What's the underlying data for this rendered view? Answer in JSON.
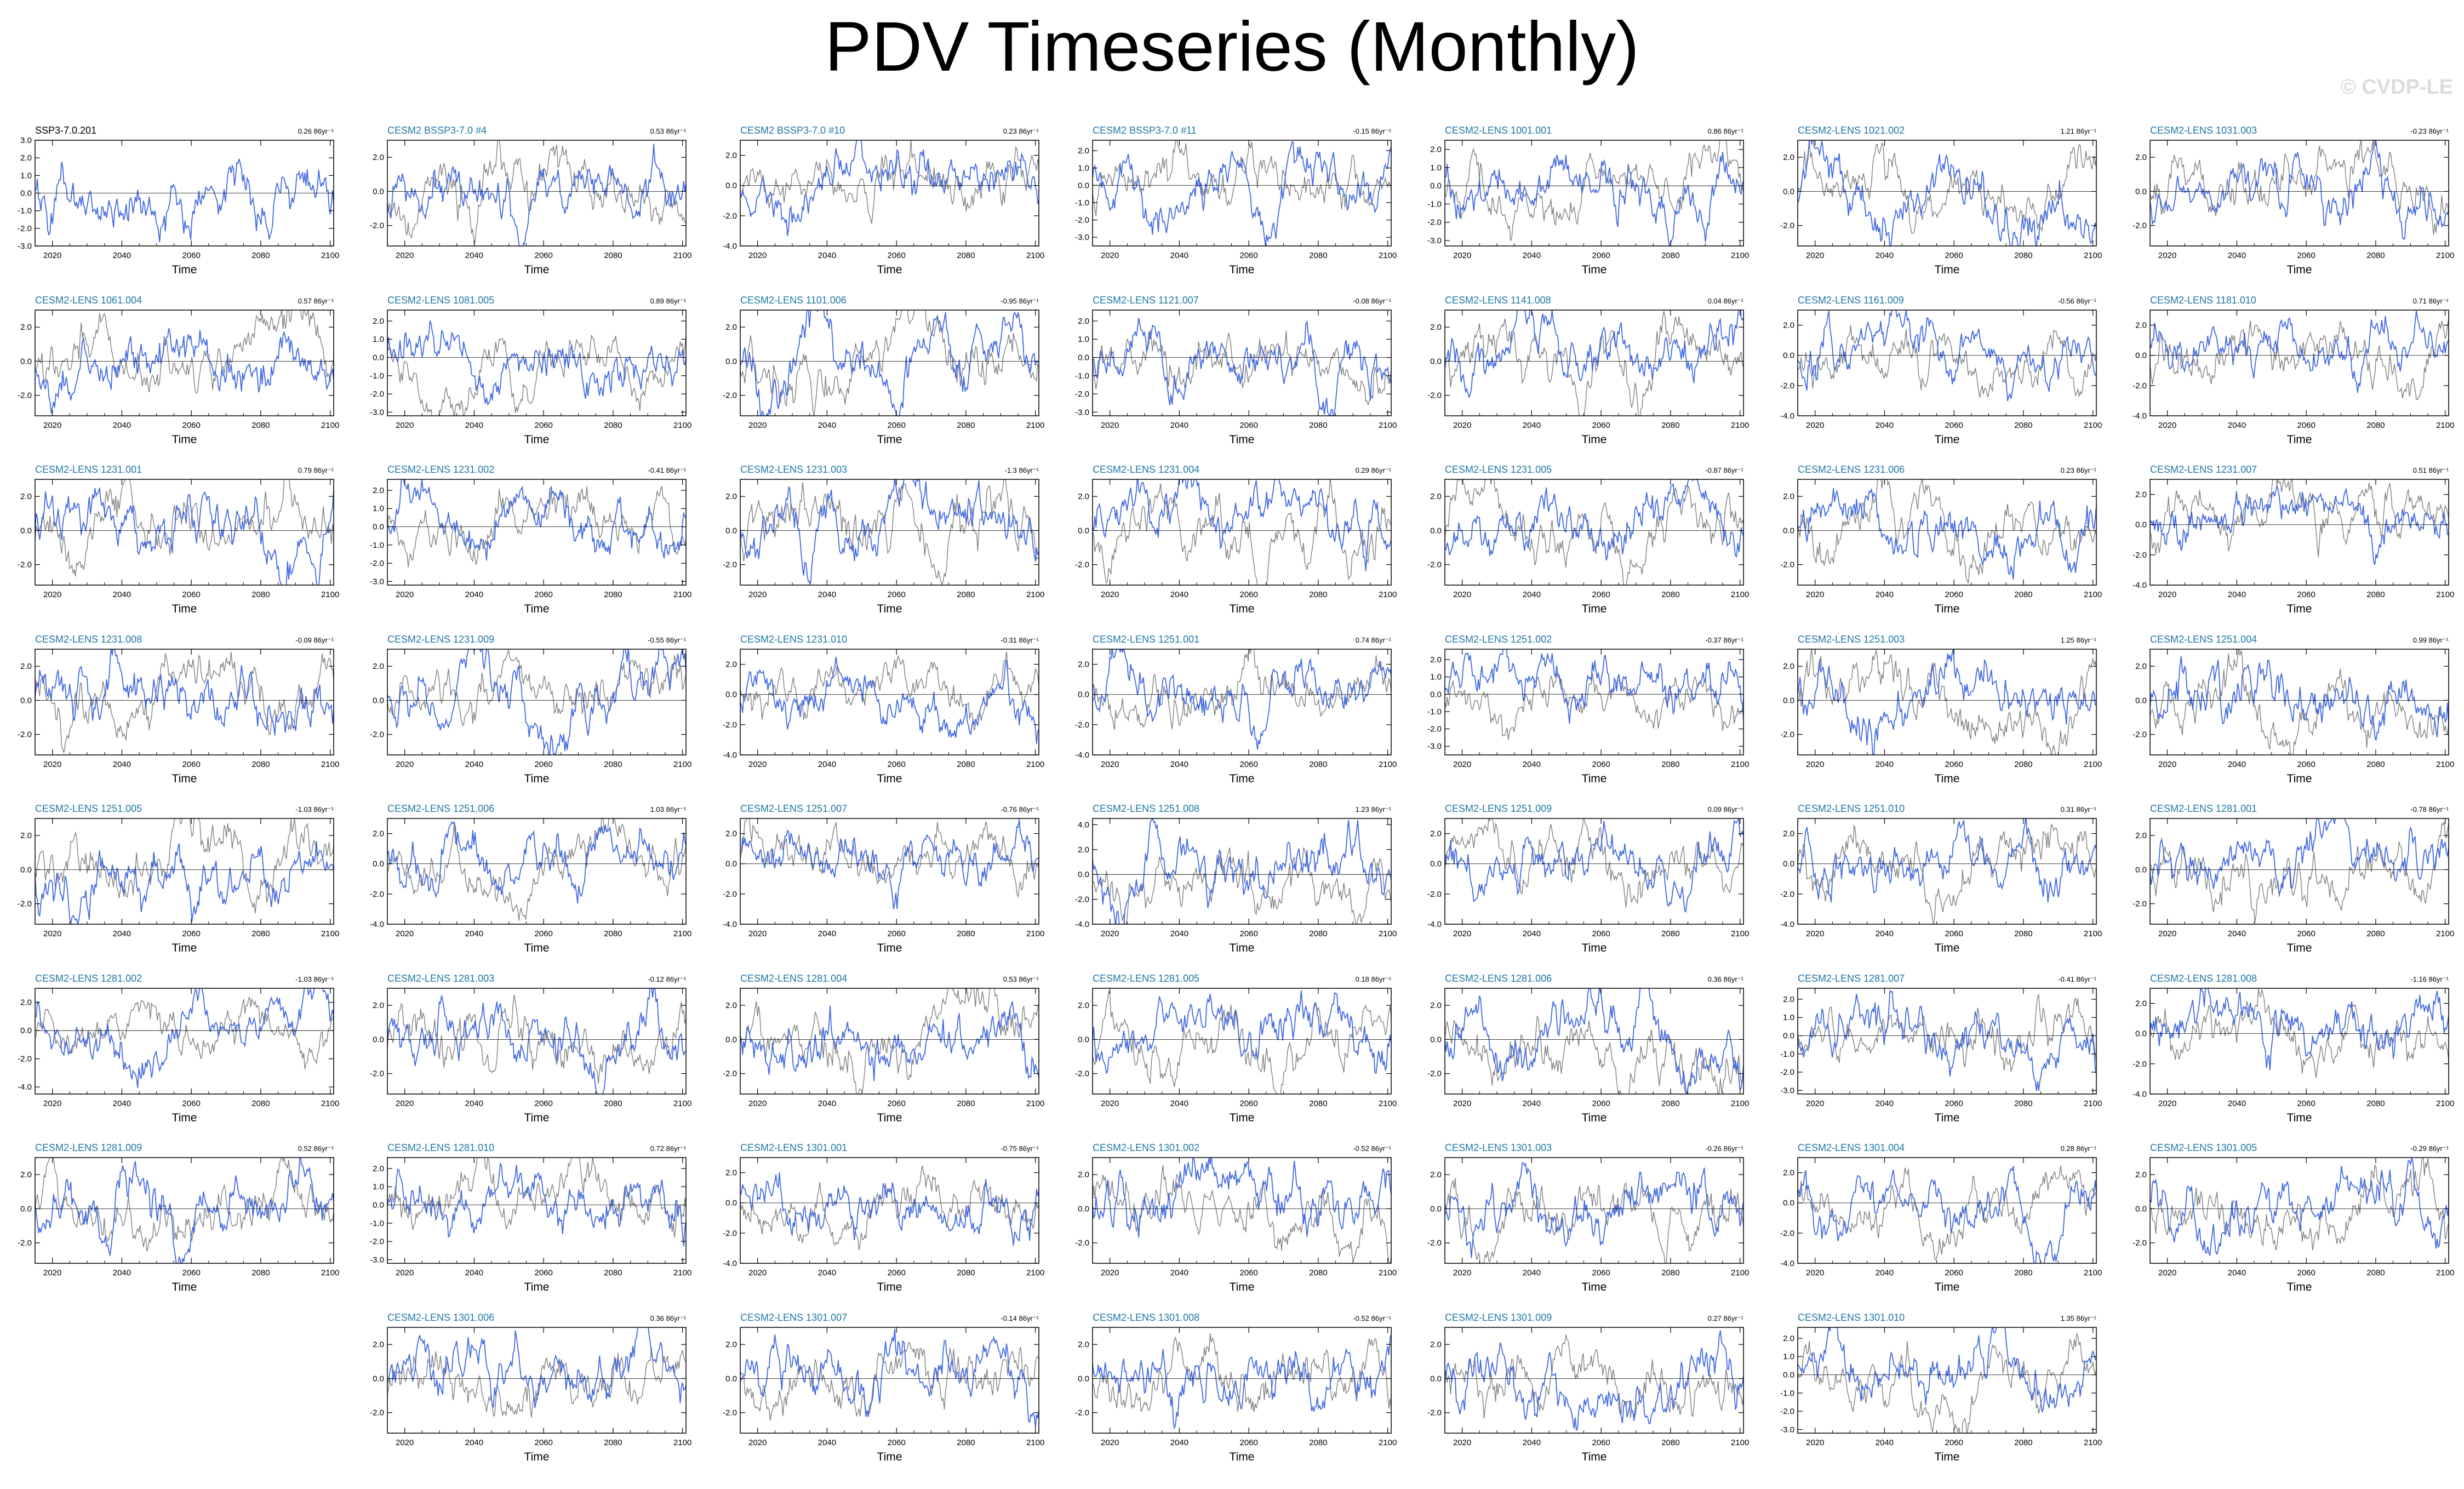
{
  "title": "PDV Timeseries (Monthly)",
  "watermark": "© CVDP-LE",
  "colors": {
    "observations": "#000000",
    "title_member": "#1f77a5",
    "simulation": "#4169e1",
    "reference": "#808080",
    "zero_line": "#000000"
  },
  "chart_data": {
    "type": "line",
    "xlabel": "Time",
    "x_ticks": [
      "2020",
      "2040",
      "2060",
      "2080",
      "2100"
    ],
    "xlim": [
      2015,
      2101
    ],
    "panels": [
      {
        "title": "SSP3-7.0.201",
        "trend": "0.26 86yr⁻¹",
        "yticks": [
          "3.0",
          "2.0",
          "1.0",
          "0.0",
          "-1.0",
          "-2.0",
          "-3.0"
        ],
        "ylim": [
          -3.0,
          3.0
        ],
        "gray": false
      },
      {
        "title": "CESM2 BSSP3-7.0 #4",
        "trend": "0.53 86yr⁻¹",
        "yticks": [
          "2.0",
          "0.0",
          "-2.0"
        ],
        "ylim": [
          -3.2,
          3.0
        ],
        "gray": true
      },
      {
        "title": "CESM2 BSSP3-7.0 #10",
        "trend": "0.23 86yr⁻¹",
        "yticks": [
          "2.0",
          "0.0",
          "-2.0",
          "-4.0"
        ],
        "ylim": [
          -4.0,
          3.0
        ],
        "gray": true
      },
      {
        "title": "CESM2 BSSP3-7.0 #11",
        "trend": "-0.15 86yr⁻¹",
        "yticks": [
          "2.0",
          "1.0",
          "0.0",
          "-1.0",
          "-2.0",
          "-3.0"
        ],
        "ylim": [
          -3.5,
          2.6
        ],
        "gray": true
      },
      {
        "title": "CESM2-LENS 1001.001",
        "trend": "0.86 86yr⁻¹",
        "yticks": [
          "2.0",
          "1.0",
          "0.0",
          "-1.0",
          "-2.0",
          "-3.0"
        ],
        "ylim": [
          -3.3,
          2.5
        ],
        "gray": true
      },
      {
        "title": "CESM2-LENS 1021.002",
        "trend": "1.21 86yr⁻¹",
        "yticks": [
          "2.0",
          "0.0",
          "-2.0"
        ],
        "ylim": [
          -3.2,
          3.0
        ],
        "gray": true
      },
      {
        "title": "CESM2-LENS 1031.003",
        "trend": "-0.23 86yr⁻¹",
        "yticks": [
          "2.0",
          "0.0",
          "-2.0"
        ],
        "ylim": [
          -3.2,
          3.0
        ],
        "gray": true
      },
      {
        "title": "CESM2-LENS 1061.004",
        "trend": "0.57 86yr⁻¹",
        "yticks": [
          "2.0",
          "0.0",
          "-2.0"
        ],
        "ylim": [
          -3.2,
          3.0
        ],
        "gray": true
      },
      {
        "title": "CESM2-LENS 1081.005",
        "trend": "0.89 86yr⁻¹",
        "yticks": [
          "2.0",
          "1.0",
          "0.0",
          "-1.0",
          "-2.0",
          "-3.0"
        ],
        "ylim": [
          -3.2,
          2.6
        ],
        "gray": true
      },
      {
        "title": "CESM2-LENS 1101.006",
        "trend": "-0.95 86yr⁻¹",
        "yticks": [
          "2.0",
          "0.0",
          "-2.0"
        ],
        "ylim": [
          -3.2,
          3.0
        ],
        "gray": true
      },
      {
        "title": "CESM2-LENS 1121.007",
        "trend": "-0.08 86yr⁻¹",
        "yticks": [
          "2.0",
          "1.0",
          "0.0",
          "-1.0",
          "-2.0",
          "-3.0"
        ],
        "ylim": [
          -3.2,
          2.6
        ],
        "gray": true
      },
      {
        "title": "CESM2-LENS 1141.008",
        "trend": "0.04 86yr⁻¹",
        "yticks": [
          "2.0",
          "0.0",
          "-2.0"
        ],
        "ylim": [
          -3.2,
          3.0
        ],
        "gray": true
      },
      {
        "title": "CESM2-LENS 1161.009",
        "trend": "-0.56 86yr⁻¹",
        "yticks": [
          "2.0",
          "0.0",
          "-2.0",
          "-4.0"
        ],
        "ylim": [
          -4.0,
          3.0
        ],
        "gray": true
      },
      {
        "title": "CESM2-LENS 1181.010",
        "trend": "0.71 86yr⁻¹",
        "yticks": [
          "2.0",
          "0.0",
          "-2.0",
          "-4.0"
        ],
        "ylim": [
          -4.0,
          3.0
        ],
        "gray": true
      },
      {
        "title": "CESM2-LENS 1231.001",
        "trend": "0.79 86yr⁻¹",
        "yticks": [
          "2.0",
          "0.0",
          "-2.0"
        ],
        "ylim": [
          -3.2,
          3.0
        ],
        "gray": true
      },
      {
        "title": "CESM2-LENS 1231.002",
        "trend": "-0.41 86yr⁻¹",
        "yticks": [
          "2.0",
          "1.0",
          "0.0",
          "-1.0",
          "-2.0",
          "-3.0"
        ],
        "ylim": [
          -3.2,
          2.6
        ],
        "gray": true
      },
      {
        "title": "CESM2-LENS 1231.003",
        "trend": "-1.3 86yr⁻¹",
        "yticks": [
          "2.0",
          "0.0",
          "-2.0"
        ],
        "ylim": [
          -3.2,
          3.0
        ],
        "gray": true
      },
      {
        "title": "CESM2-LENS 1231.004",
        "trend": "0.29 86yr⁻¹",
        "yticks": [
          "2.0",
          "0.0",
          "-2.0"
        ],
        "ylim": [
          -3.2,
          3.0
        ],
        "gray": true
      },
      {
        "title": "CESM2-LENS 1231.005",
        "trend": "-0.87 86yr⁻¹",
        "yticks": [
          "2.0",
          "0.0",
          "-2.0"
        ],
        "ylim": [
          -3.2,
          3.0
        ],
        "gray": true
      },
      {
        "title": "CESM2-LENS 1231.006",
        "trend": "0.23 86yr⁻¹",
        "yticks": [
          "2.0",
          "0.0",
          "-2.0"
        ],
        "ylim": [
          -3.2,
          3.0
        ],
        "gray": true
      },
      {
        "title": "CESM2-LENS 1231.007",
        "trend": "0.51 86yr⁻¹",
        "yticks": [
          "2.0",
          "0.0",
          "-2.0",
          "-4.0"
        ],
        "ylim": [
          -4.0,
          3.0
        ],
        "gray": true
      },
      {
        "title": "CESM2-LENS 1231.008",
        "trend": "-0.09 86yr⁻¹",
        "yticks": [
          "2.0",
          "0.0",
          "-2.0"
        ],
        "ylim": [
          -3.2,
          3.0
        ],
        "gray": true
      },
      {
        "title": "CESM2-LENS 1231.009",
        "trend": "-0.55 86yr⁻¹",
        "yticks": [
          "2.0",
          "0.0",
          "-2.0"
        ],
        "ylim": [
          -3.2,
          3.0
        ],
        "gray": true
      },
      {
        "title": "CESM2-LENS 1231.010",
        "trend": "-0.31 86yr⁻¹",
        "yticks": [
          "2.0",
          "0.0",
          "-2.0",
          "-4.0"
        ],
        "ylim": [
          -4.0,
          3.0
        ],
        "gray": true
      },
      {
        "title": "CESM2-LENS 1251.001",
        "trend": "0.74 86yr⁻¹",
        "yticks": [
          "2.0",
          "0.0",
          "-2.0",
          "-4.0"
        ],
        "ylim": [
          -4.0,
          3.0
        ],
        "gray": true
      },
      {
        "title": "CESM2-LENS 1251.002",
        "trend": "-0.37 86yr⁻¹",
        "yticks": [
          "2.0",
          "1.0",
          "0.0",
          "-1.0",
          "-2.0",
          "-3.0"
        ],
        "ylim": [
          -3.5,
          2.6
        ],
        "gray": true
      },
      {
        "title": "CESM2-LENS 1251.003",
        "trend": "1.25 86yr⁻¹",
        "yticks": [
          "2.0",
          "0.0",
          "-2.0"
        ],
        "ylim": [
          -3.2,
          3.0
        ],
        "gray": true
      },
      {
        "title": "CESM2-LENS 1251.004",
        "trend": "0.99 86yr⁻¹",
        "yticks": [
          "2.0",
          "0.0",
          "-2.0"
        ],
        "ylim": [
          -3.2,
          3.0
        ],
        "gray": true
      },
      {
        "title": "CESM2-LENS 1251.005",
        "trend": "-1.03 86yr⁻¹",
        "yticks": [
          "2.0",
          "0.0",
          "-2.0"
        ],
        "ylim": [
          -3.2,
          3.0
        ],
        "gray": true
      },
      {
        "title": "CESM2-LENS 1251.006",
        "trend": "1.03 86yr⁻¹",
        "yticks": [
          "2.0",
          "0.0",
          "-2.0",
          "-4.0"
        ],
        "ylim": [
          -4.0,
          3.0
        ],
        "gray": true
      },
      {
        "title": "CESM2-LENS 1251.007",
        "trend": "-0.76 86yr⁻¹",
        "yticks": [
          "2.0",
          "0.0",
          "-2.0",
          "-4.0"
        ],
        "ylim": [
          -4.0,
          3.0
        ],
        "gray": true
      },
      {
        "title": "CESM2-LENS 1251.008",
        "trend": "1.23 86yr⁻¹",
        "yticks": [
          "4.0",
          "2.0",
          "0.0",
          "-2.0",
          "-4.0"
        ],
        "ylim": [
          -4.0,
          4.5
        ],
        "gray": true
      },
      {
        "title": "CESM2-LENS 1251.009",
        "trend": "0.09 86yr⁻¹",
        "yticks": [
          "2.0",
          "0.0",
          "-2.0",
          "-4.0"
        ],
        "ylim": [
          -4.0,
          3.0
        ],
        "gray": true
      },
      {
        "title": "CESM2-LENS 1251.010",
        "trend": "0.31 86yr⁻¹",
        "yticks": [
          "2.0",
          "0.0",
          "-2.0",
          "-4.0"
        ],
        "ylim": [
          -4.0,
          3.0
        ],
        "gray": true
      },
      {
        "title": "CESM2-LENS 1281.001",
        "trend": "-0.78 86yr⁻¹",
        "yticks": [
          "2.0",
          "0.0",
          "-2.0"
        ],
        "ylim": [
          -3.2,
          3.0
        ],
        "gray": true
      },
      {
        "title": "CESM2-LENS 1281.002",
        "trend": "-1.03 86yr⁻¹",
        "yticks": [
          "2.0",
          "0.0",
          "-2.0",
          "-4.0"
        ],
        "ylim": [
          -4.5,
          3.0
        ],
        "gray": true
      },
      {
        "title": "CESM2-LENS 1281.003",
        "trend": "-0.12 86yr⁻¹",
        "yticks": [
          "2.0",
          "0.0",
          "-2.0"
        ],
        "ylim": [
          -3.2,
          3.0
        ],
        "gray": true
      },
      {
        "title": "CESM2-LENS 1281.004",
        "trend": "0.53 86yr⁻¹",
        "yticks": [
          "2.0",
          "0.0",
          "-2.0"
        ],
        "ylim": [
          -3.2,
          3.0
        ],
        "gray": true
      },
      {
        "title": "CESM2-LENS 1281.005",
        "trend": "0.18 86yr⁻¹",
        "yticks": [
          "2.0",
          "0.0",
          "-2.0"
        ],
        "ylim": [
          -3.2,
          3.0
        ],
        "gray": true
      },
      {
        "title": "CESM2-LENS 1281.006",
        "trend": "0.36 86yr⁻¹",
        "yticks": [
          "2.0",
          "0.0",
          "-2.0"
        ],
        "ylim": [
          -3.2,
          3.0
        ],
        "gray": true
      },
      {
        "title": "CESM2-LENS 1281.007",
        "trend": "-0.41 86yr⁻¹",
        "yticks": [
          "2.0",
          "1.0",
          "0.0",
          "-1.0",
          "-2.0",
          "-3.0"
        ],
        "ylim": [
          -3.2,
          2.6
        ],
        "gray": true
      },
      {
        "title": "CESM2-LENS 1281.008",
        "trend": "-1.16 86yr⁻¹",
        "yticks": [
          "2.0",
          "0.0",
          "-2.0",
          "-4.0"
        ],
        "ylim": [
          -4.0,
          3.0
        ],
        "gray": true
      },
      {
        "title": "CESM2-LENS 1281.009",
        "trend": "0.52 86yr⁻¹",
        "yticks": [
          "2.0",
          "0.0",
          "-2.0"
        ],
        "ylim": [
          -3.2,
          3.0
        ],
        "gray": true
      },
      {
        "title": "CESM2-LENS 1281.010",
        "trend": "0.72 86yr⁻¹",
        "yticks": [
          "2.0",
          "1.0",
          "0.0",
          "-1.0",
          "-2.0",
          "-3.0"
        ],
        "ylim": [
          -3.2,
          2.6
        ],
        "gray": true
      },
      {
        "title": "CESM2-LENS 1301.001",
        "trend": "-0.75 86yr⁻¹",
        "yticks": [
          "2.0",
          "0.0",
          "-2.0",
          "-4.0"
        ],
        "ylim": [
          -4.0,
          3.0
        ],
        "gray": true
      },
      {
        "title": "CESM2-LENS 1301.002",
        "trend": "-0.52 86yr⁻¹",
        "yticks": [
          "2.0",
          "0.0",
          "-2.0"
        ],
        "ylim": [
          -3.2,
          3.0
        ],
        "gray": true
      },
      {
        "title": "CESM2-LENS 1301.003",
        "trend": "-0.26 86yr⁻¹",
        "yticks": [
          "2.0",
          "0.0",
          "-2.0"
        ],
        "ylim": [
          -3.2,
          3.0
        ],
        "gray": true
      },
      {
        "title": "CESM2-LENS 1301.004",
        "trend": "0.28 86yr⁻¹",
        "yticks": [
          "2.0",
          "0.0",
          "-2.0",
          "-4.0"
        ],
        "ylim": [
          -4.0,
          3.0
        ],
        "gray": true
      },
      {
        "title": "CESM2-LENS 1301.005",
        "trend": "-0.29 86yr⁻¹",
        "yticks": [
          "2.0",
          "0.0",
          "-2.0"
        ],
        "ylim": [
          -3.2,
          3.0
        ],
        "gray": true
      },
      {
        "title": "CESM2-LENS 1301.006",
        "trend": "0.36 86yr⁻¹",
        "yticks": [
          "2.0",
          "0.0",
          "-2.0"
        ],
        "ylim": [
          -3.2,
          3.0
        ],
        "gray": true
      },
      {
        "title": "CESM2-LENS 1301.007",
        "trend": "-0.14 86yr⁻¹",
        "yticks": [
          "2.0",
          "0.0",
          "-2.0"
        ],
        "ylim": [
          -3.2,
          3.0
        ],
        "gray": true
      },
      {
        "title": "CESM2-LENS 1301.008",
        "trend": "-0.52 86yr⁻¹",
        "yticks": [
          "2.0",
          "0.0",
          "-2.0"
        ],
        "ylim": [
          -3.2,
          3.0
        ],
        "gray": true
      },
      {
        "title": "CESM2-LENS 1301.009",
        "trend": "0.27 86yr⁻¹",
        "yticks": [
          "2.0",
          "0.0",
          "-2.0"
        ],
        "ylim": [
          -3.2,
          3.0
        ],
        "gray": true
      },
      {
        "title": "CESM2-LENS 1301.010",
        "trend": "1.35 86yr⁻¹",
        "yticks": [
          "2.0",
          "1.0",
          "0.0",
          "-1.0",
          "-2.0",
          "-3.0"
        ],
        "ylim": [
          -3.2,
          2.6
        ],
        "gray": true
      }
    ]
  }
}
